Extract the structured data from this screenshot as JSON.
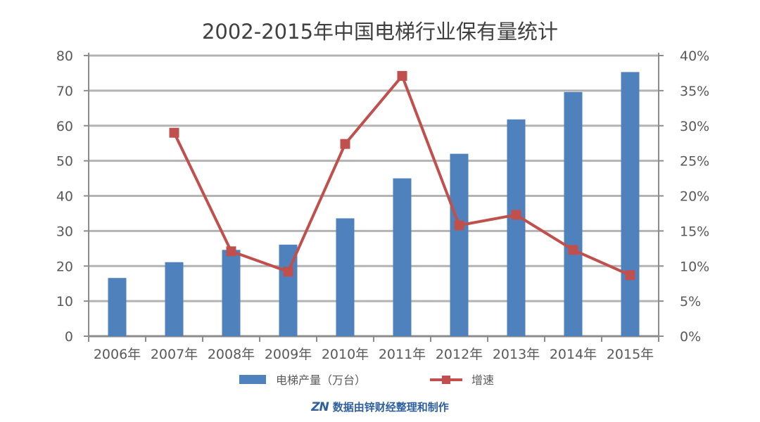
{
  "chart_data": {
    "type": "bar",
    "title": "2002-2015年中国电梯行业保有量统计",
    "categories": [
      "2006年",
      "2007年",
      "2008年",
      "2009年",
      "2010年",
      "2011年",
      "2012年",
      "2013年",
      "2014年",
      "2015年"
    ],
    "series": [
      {
        "name": "电梯产量（万台）",
        "type": "bar",
        "axis": "left",
        "color": "#4f81bd",
        "values": [
          16.6,
          21.1,
          24.6,
          26.1,
          33.6,
          45.0,
          52.0,
          61.8,
          69.6,
          75.3
        ]
      },
      {
        "name": "增速",
        "type": "line",
        "axis": "right",
        "color": "#c0504d",
        "values": [
          null,
          29.0,
          12.1,
          9.2,
          27.4,
          37.1,
          15.8,
          17.3,
          12.3,
          8.7
        ]
      }
    ],
    "y_left": {
      "ticks": [
        "0",
        "10",
        "20",
        "30",
        "40",
        "50",
        "60",
        "70",
        "80"
      ],
      "ylim": [
        0,
        80
      ]
    },
    "y_right": {
      "ticks": [
        "0%",
        "5%",
        "10%",
        "15%",
        "20%",
        "25%",
        "30%",
        "35%",
        "40%"
      ],
      "ylim": [
        0,
        40
      ]
    },
    "grid": true,
    "legend_position": "bottom"
  },
  "credit": {
    "logo_text": "ZN",
    "text": "数据由锌财经整理和制作"
  }
}
